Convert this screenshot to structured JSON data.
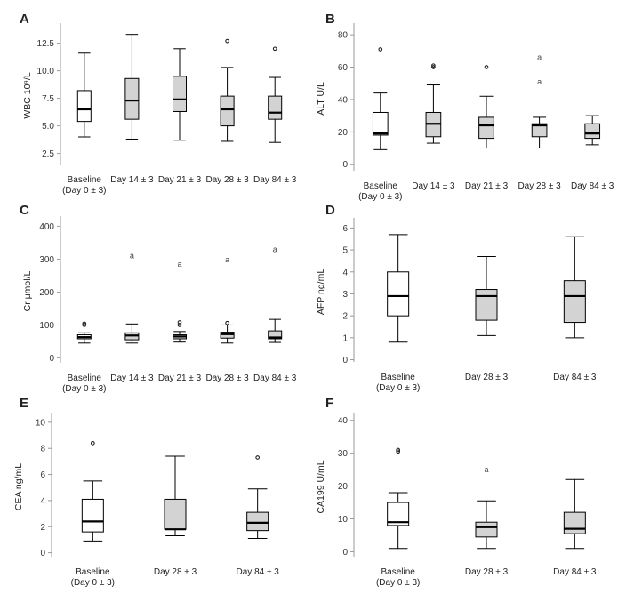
{
  "figure": {
    "background": "#ffffff"
  },
  "chart_data": [
    {
      "panel_label": "A",
      "type": "box",
      "ylabel": "WBC 10⁹/L",
      "ylim": [
        1.5,
        14.0
      ],
      "yticks": [
        "2.5",
        "5.0",
        "7.5",
        "10.0",
        "12.5"
      ],
      "ytick_values": [
        2.5,
        5.0,
        7.5,
        10.0,
        12.5
      ],
      "categories": [
        {
          "line1": "Baseline",
          "line2": "(Day 0 ± 3)"
        },
        {
          "line1": "Day 14 ± 3",
          "line2": ""
        },
        {
          "line1": "Day 21 ± 3",
          "line2": ""
        },
        {
          "line1": "Day 28 ± 3",
          "line2": ""
        },
        {
          "line1": "Day 84 ± 3",
          "line2": ""
        }
      ],
      "boxes": [
        {
          "min": 4.0,
          "q1": 5.4,
          "median": 6.5,
          "q3": 8.2,
          "max": 11.6,
          "fill": "#ffffff",
          "outliers": []
        },
        {
          "min": 3.8,
          "q1": 5.6,
          "median": 7.3,
          "q3": 9.3,
          "max": 13.3,
          "fill": "#d3d3d3",
          "outliers": []
        },
        {
          "min": 3.7,
          "q1": 6.3,
          "median": 7.4,
          "q3": 9.5,
          "max": 12.0,
          "fill": "#d3d3d3",
          "outliers": []
        },
        {
          "min": 3.6,
          "q1": 5.0,
          "median": 6.5,
          "q3": 7.7,
          "max": 10.3,
          "fill": "#d3d3d3",
          "outliers": [
            {
              "value": 12.7,
              "marker": "o"
            }
          ]
        },
        {
          "min": 3.5,
          "q1": 5.6,
          "median": 6.2,
          "q3": 7.7,
          "max": 9.4,
          "fill": "#d3d3d3",
          "outliers": [
            {
              "value": 12.0,
              "marker": "o"
            }
          ]
        }
      ]
    },
    {
      "panel_label": "B",
      "type": "box",
      "ylabel": "ALT U/L",
      "ylim": [
        -4,
        85
      ],
      "yticks": [
        "0",
        "20",
        "40",
        "60",
        "80"
      ],
      "ytick_values": [
        0,
        20,
        40,
        60,
        80
      ],
      "categories": [
        {
          "line1": "Baseline",
          "line2": "(Day 0 ± 3)"
        },
        {
          "line1": "Day 14 ± 3",
          "line2": ""
        },
        {
          "line1": "Day 21 ± 3",
          "line2": ""
        },
        {
          "line1": "Day 28 ± 3",
          "line2": ""
        },
        {
          "line1": "Day 84 ± 3",
          "line2": ""
        }
      ],
      "boxes": [
        {
          "min": 9,
          "q1": 18,
          "median": 19,
          "q3": 32,
          "max": 44,
          "fill": "#ffffff",
          "outliers": [
            {
              "value": 71,
              "marker": "o"
            }
          ]
        },
        {
          "min": 13,
          "q1": 17,
          "median": 25,
          "q3": 32,
          "max": 49,
          "fill": "#d3d3d3",
          "outliers": [
            {
              "value": 60,
              "marker": "o"
            },
            {
              "value": 61,
              "marker": "o"
            }
          ]
        },
        {
          "min": 10,
          "q1": 16,
          "median": 24,
          "q3": 29,
          "max": 42,
          "fill": "#d3d3d3",
          "outliers": [
            {
              "value": 60,
              "marker": "o"
            }
          ]
        },
        {
          "min": 10,
          "q1": 17,
          "median": 24,
          "q3": 25,
          "max": 29,
          "fill": "#d3d3d3",
          "outliers": [
            {
              "value": 51,
              "marker": "a"
            },
            {
              "value": 66,
              "marker": "a"
            }
          ]
        },
        {
          "min": 12,
          "q1": 16,
          "median": 19,
          "q3": 25,
          "max": 30,
          "fill": "#d3d3d3",
          "outliers": []
        }
      ]
    },
    {
      "panel_label": "C",
      "type": "box",
      "ylabel": "Cr μmol/L",
      "ylim": [
        -15,
        420
      ],
      "yticks": [
        "0",
        "100",
        "200",
        "300",
        "400"
      ],
      "ytick_values": [
        0,
        100,
        200,
        300,
        400
      ],
      "categories": [
        {
          "line1": "Baseline",
          "line2": "(Day 0 ± 3)"
        },
        {
          "line1": "Day 14 ± 3",
          "line2": ""
        },
        {
          "line1": "Day 21 ± 3",
          "line2": ""
        },
        {
          "line1": "Day 28 ± 3",
          "line2": ""
        },
        {
          "line1": "Day 84 ± 3",
          "line2": ""
        }
      ],
      "boxes": [
        {
          "min": 45,
          "q1": 58,
          "median": 63,
          "q3": 70,
          "max": 76,
          "fill": "#ffffff",
          "outliers": [
            {
              "value": 100,
              "marker": "o"
            },
            {
              "value": 104,
              "marker": "o"
            }
          ]
        },
        {
          "min": 45,
          "q1": 55,
          "median": 68,
          "q3": 76,
          "max": 103,
          "fill": "#d3d3d3",
          "outliers": [
            {
              "value": 310,
              "marker": "a"
            }
          ]
        },
        {
          "min": 48,
          "q1": 58,
          "median": 65,
          "q3": 70,
          "max": 80,
          "fill": "#d3d3d3",
          "outliers": [
            {
              "value": 100,
              "marker": "o"
            },
            {
              "value": 108,
              "marker": "o"
            },
            {
              "value": 285,
              "marker": "a"
            }
          ]
        },
        {
          "min": 45,
          "q1": 60,
          "median": 72,
          "q3": 78,
          "max": 100,
          "fill": "#d3d3d3",
          "outliers": [
            {
              "value": 106,
              "marker": "o"
            },
            {
              "value": 298,
              "marker": "a"
            }
          ]
        },
        {
          "min": 47,
          "q1": 58,
          "median": 62,
          "q3": 82,
          "max": 117,
          "fill": "#d3d3d3",
          "outliers": [
            {
              "value": 330,
              "marker": "a"
            }
          ]
        }
      ]
    },
    {
      "panel_label": "D",
      "type": "box",
      "ylabel": "AFP ng/mL",
      "ylim": [
        -0.1,
        6.3
      ],
      "yticks": [
        "0",
        "1",
        "2",
        "3",
        "4",
        "5",
        "6"
      ],
      "ytick_values": [
        0,
        1,
        2,
        3,
        4,
        5,
        6
      ],
      "categories": [
        {
          "line1": "Baseline",
          "line2": "(Day 0 ± 3)"
        },
        {
          "line1": "Day 28 ± 3",
          "line2": ""
        },
        {
          "line1": "Day 84 ± 3",
          "line2": ""
        }
      ],
      "boxes": [
        {
          "min": 0.8,
          "q1": 2.0,
          "median": 2.9,
          "q3": 4.0,
          "max": 5.7,
          "fill": "#ffffff",
          "outliers": []
        },
        {
          "min": 1.1,
          "q1": 1.8,
          "median": 2.9,
          "q3": 3.2,
          "max": 4.7,
          "fill": "#d3d3d3",
          "outliers": []
        },
        {
          "min": 1.0,
          "q1": 1.7,
          "median": 2.9,
          "q3": 3.6,
          "max": 5.6,
          "fill": "#d3d3d3",
          "outliers": []
        }
      ]
    },
    {
      "panel_label": "E",
      "type": "box",
      "ylabel": "CEA ng/mL",
      "ylim": [
        -0.3,
        10.4
      ],
      "yticks": [
        "0",
        "2",
        "4",
        "6",
        "8",
        "10"
      ],
      "ytick_values": [
        0,
        2,
        4,
        6,
        8,
        10
      ],
      "categories": [
        {
          "line1": "Baseline",
          "line2": "(Day 0 ± 3)"
        },
        {
          "line1": "Day 28 ± 3",
          "line2": ""
        },
        {
          "line1": "Day 84 ± 3",
          "line2": ""
        }
      ],
      "boxes": [
        {
          "min": 0.9,
          "q1": 1.6,
          "median": 2.4,
          "q3": 4.1,
          "max": 5.5,
          "fill": "#ffffff",
          "outliers": [
            {
              "value": 8.4,
              "marker": "o"
            }
          ]
        },
        {
          "min": 1.3,
          "q1": 1.8,
          "median": 1.8,
          "q3": 4.1,
          "max": 7.4,
          "fill": "#d3d3d3",
          "outliers": []
        },
        {
          "min": 1.1,
          "q1": 1.7,
          "median": 2.3,
          "q3": 3.1,
          "max": 4.9,
          "fill": "#d3d3d3",
          "outliers": [
            {
              "value": 7.3,
              "marker": "o"
            }
          ]
        }
      ]
    },
    {
      "panel_label": "F",
      "type": "box",
      "ylabel": "CA199 U/mL",
      "ylim": [
        -1.5,
        41
      ],
      "yticks": [
        "0",
        "10",
        "20",
        "30",
        "40"
      ],
      "ytick_values": [
        0,
        10,
        20,
        30,
        40
      ],
      "categories": [
        {
          "line1": "Baseline",
          "line2": "(Day 0 ± 3)"
        },
        {
          "line1": "Day 28 ± 3",
          "line2": ""
        },
        {
          "line1": "Day 84 ± 3",
          "line2": ""
        }
      ],
      "boxes": [
        {
          "min": 1,
          "q1": 8,
          "median": 9,
          "q3": 15,
          "max": 18,
          "fill": "#ffffff",
          "outliers": [
            {
              "value": 30.5,
              "marker": "o"
            },
            {
              "value": 31,
              "marker": "o"
            }
          ]
        },
        {
          "min": 1,
          "q1": 4.5,
          "median": 7.5,
          "q3": 9,
          "max": 15.5,
          "fill": "#d3d3d3",
          "outliers": [
            {
              "value": 25,
              "marker": "a"
            }
          ]
        },
        {
          "min": 1,
          "q1": 5.5,
          "median": 7,
          "q3": 12,
          "max": 22,
          "fill": "#d3d3d3",
          "outliers": []
        }
      ]
    }
  ]
}
